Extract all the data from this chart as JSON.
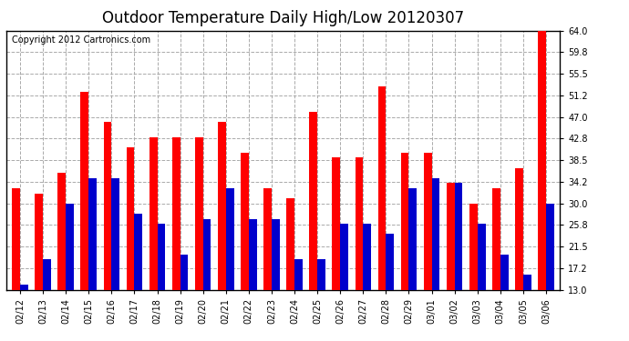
{
  "title": "Outdoor Temperature Daily High/Low 20120307",
  "copyright": "Copyright 2012 Cartronics.com",
  "dates": [
    "02/12",
    "02/13",
    "02/14",
    "02/15",
    "02/16",
    "02/17",
    "02/18",
    "02/19",
    "02/20",
    "02/21",
    "02/22",
    "02/23",
    "02/24",
    "02/25",
    "02/26",
    "02/27",
    "02/28",
    "02/29",
    "03/01",
    "03/02",
    "03/03",
    "03/04",
    "03/05",
    "03/06"
  ],
  "highs": [
    33.0,
    32.0,
    36.0,
    52.0,
    46.0,
    41.0,
    43.0,
    43.0,
    43.0,
    46.0,
    40.0,
    33.0,
    31.0,
    48.0,
    39.0,
    39.0,
    53.0,
    40.0,
    40.0,
    34.0,
    30.0,
    33.0,
    37.0,
    64.0
  ],
  "lows": [
    14.0,
    19.0,
    30.0,
    35.0,
    35.0,
    28.0,
    26.0,
    20.0,
    27.0,
    33.0,
    27.0,
    27.0,
    19.0,
    19.0,
    26.0,
    26.0,
    24.0,
    33.0,
    35.0,
    34.0,
    26.0,
    20.0,
    16.0,
    30.0
  ],
  "high_color": "#ff0000",
  "low_color": "#0000cc",
  "bg_color": "#ffffff",
  "grid_color": "#aaaaaa",
  "yticks": [
    13.0,
    17.2,
    21.5,
    25.8,
    30.0,
    34.2,
    38.5,
    42.8,
    47.0,
    51.2,
    55.5,
    59.8,
    64.0
  ],
  "ylim": [
    13.0,
    64.0
  ],
  "title_fontsize": 12,
  "copyright_fontsize": 7,
  "tick_fontsize": 7,
  "bar_width": 0.35
}
